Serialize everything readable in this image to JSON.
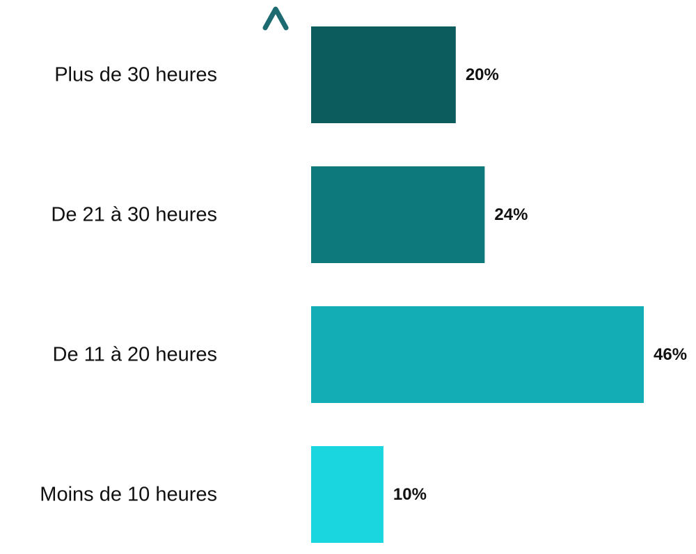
{
  "chart_data": {
    "type": "bar",
    "orientation": "horizontal",
    "categories": [
      "Plus de 30 heures",
      "De 21 à 30 heures",
      "De 11 à 20 heures",
      "Moins de 10 heures"
    ],
    "values": [
      20,
      24,
      46,
      10
    ],
    "value_labels": [
      "20%",
      "24%",
      "46%",
      "10%"
    ],
    "bar_colors": [
      "#0c5c5e",
      "#0e797c",
      "#13aeb5",
      "#19d6df"
    ],
    "title": "",
    "xlabel": "",
    "ylabel": "",
    "xlim": [
      0,
      46
    ],
    "grid": false,
    "legend": "none",
    "axis_arrow": {
      "direction": "up",
      "gradient_top": "#1d6a70",
      "gradient_bottom": "#bcd8f1"
    }
  }
}
